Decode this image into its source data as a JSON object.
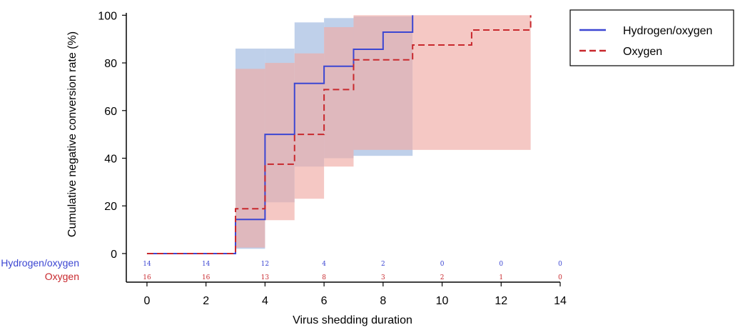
{
  "chart_data": {
    "type": "line",
    "step": true,
    "title": "",
    "xlabel": "Virus shedding duration",
    "ylabel": "Cumulative negative conversion rate (%)",
    "xlim": [
      -0.7,
      14
    ],
    "ylim": [
      -12,
      101
    ],
    "xticks": [
      0,
      2,
      4,
      6,
      8,
      10,
      12,
      14
    ],
    "yticks": [
      0,
      20,
      40,
      60,
      80,
      100
    ],
    "grid": false,
    "legend_position": "outside-top-right",
    "series": [
      {
        "name": "Hydrogen/oxygen",
        "color": "#3c46d2",
        "band_color": "#b4c8e6",
        "dash": "solid",
        "steps": [
          [
            0,
            0
          ],
          [
            3,
            14.3
          ],
          [
            4,
            50
          ],
          [
            5,
            71.4
          ],
          [
            6,
            78.6
          ],
          [
            7,
            85.7
          ],
          [
            8,
            92.9
          ],
          [
            9,
            100
          ]
        ],
        "ci": [
          [
            3,
            4,
            2,
            86
          ],
          [
            4,
            5,
            21.5,
            86
          ],
          [
            5,
            6,
            36.5,
            97
          ],
          [
            6,
            7,
            40,
            98.8
          ],
          [
            7,
            9,
            41,
            99.5
          ]
        ],
        "risk": [
          14,
          14,
          12,
          4,
          2,
          0,
          0,
          0
        ]
      },
      {
        "name": "Oxygen",
        "color": "#c8282d",
        "band_color": "#f0aaa5",
        "dash": "dashed",
        "steps": [
          [
            0,
            0
          ],
          [
            3,
            18.8
          ],
          [
            4,
            37.5
          ],
          [
            5,
            50
          ],
          [
            6,
            68.8
          ],
          [
            7,
            81.3
          ],
          [
            9,
            87.5
          ],
          [
            11,
            93.8
          ],
          [
            13,
            100
          ]
        ],
        "ci": [
          [
            3,
            4,
            2.5,
            77.5
          ],
          [
            4,
            5,
            14,
            80
          ],
          [
            5,
            6,
            23,
            84
          ],
          [
            6,
            7,
            36.5,
            95
          ],
          [
            7,
            9,
            43.5,
            100
          ],
          [
            9,
            13,
            43.5,
            100
          ]
        ],
        "risk": [
          16,
          16,
          13,
          8,
          3,
          2,
          1,
          0
        ]
      }
    ],
    "risk_table": {
      "labels": [
        "Hydrogen/oxygen",
        "Oxygen"
      ],
      "times": [
        0,
        2,
        4,
        6,
        8,
        10,
        12,
        14
      ]
    }
  }
}
